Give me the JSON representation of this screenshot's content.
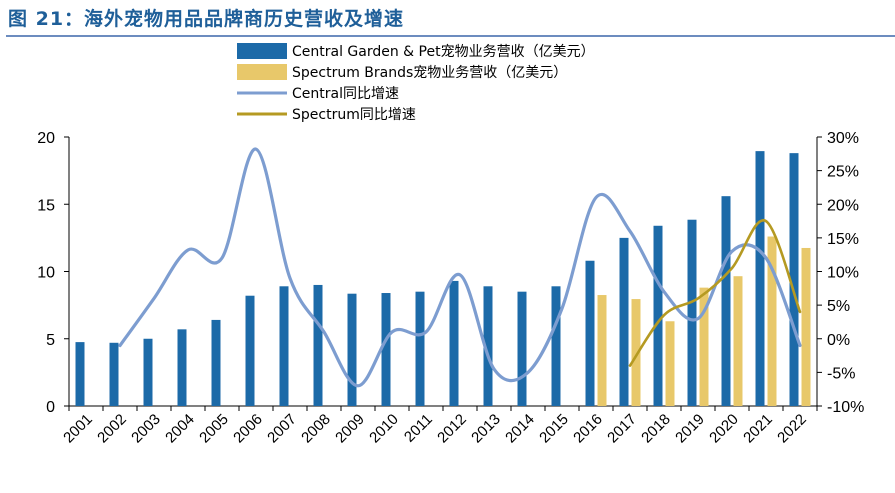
{
  "header": {
    "title": "图 21：海外宠物用品品牌商历史营收及增速"
  },
  "chart_data": {
    "type": "bar",
    "categories": [
      "2001",
      "2002",
      "2003",
      "2004",
      "2005",
      "2006",
      "2007",
      "2008",
      "2009",
      "2010",
      "2011",
      "2012",
      "2013",
      "2014",
      "2015",
      "2016",
      "2017",
      "2018",
      "2019",
      "2020",
      "2021",
      "2022"
    ],
    "y_left": {
      "range": [
        0,
        20
      ],
      "ticks": [
        "0",
        "5",
        "10",
        "15",
        "20"
      ]
    },
    "y_right": {
      "range": [
        -10,
        30
      ],
      "ticks": [
        "-10%",
        "-5%",
        "0%",
        "5%",
        "10%",
        "15%",
        "20%",
        "25%",
        "30%"
      ]
    },
    "series": [
      {
        "name": "Central Garden & Pet宠物业务营收（亿美元）",
        "kind": "bar",
        "axis": "left",
        "color": "#1c6aa8",
        "values": [
          4.75,
          4.7,
          5.0,
          5.7,
          6.4,
          8.2,
          8.9,
          9.0,
          8.35,
          8.4,
          8.5,
          9.3,
          8.9,
          8.5,
          8.9,
          10.8,
          12.5,
          13.4,
          13.85,
          15.6,
          18.95,
          18.8
        ]
      },
      {
        "name": "Spectrum Brands宠物业务营收（亿美元）",
        "kind": "bar",
        "axis": "left",
        "color": "#e8c86a",
        "values": [
          null,
          null,
          null,
          null,
          null,
          null,
          null,
          null,
          null,
          null,
          null,
          null,
          null,
          null,
          null,
          8.25,
          7.95,
          6.3,
          8.8,
          9.65,
          12.6,
          11.75
        ]
      },
      {
        "name": "Central同比增速",
        "kind": "line",
        "axis": "right",
        "color": "#7d9dd0",
        "values": [
          null,
          -1,
          6,
          13.2,
          12,
          28.2,
          9,
          1,
          -7,
          1,
          1,
          9.5,
          -4.5,
          -5,
          4.5,
          21,
          16,
          7,
          3,
          13,
          12,
          -1
        ]
      },
      {
        "name": "Spectrum同比增速",
        "kind": "line",
        "axis": "right",
        "color": "#b59a22",
        "values": [
          null,
          null,
          null,
          null,
          null,
          null,
          null,
          null,
          null,
          null,
          null,
          null,
          null,
          null,
          null,
          null,
          -4,
          3.5,
          6,
          10.5,
          17.5,
          4
        ]
      }
    ]
  }
}
